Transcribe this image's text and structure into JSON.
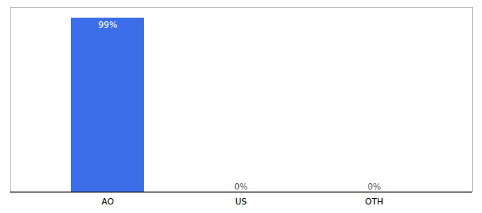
{
  "chart_data": {
    "type": "bar",
    "categories": [
      "AO",
      "US",
      "OTH"
    ],
    "values": [
      99,
      0,
      0
    ],
    "value_labels": [
      "99%",
      "0%",
      "0%"
    ],
    "color": "#3d6eea",
    "ylim": [
      0,
      105
    ],
    "data_labels": true,
    "tick_labels": "x",
    "grid": false
  }
}
